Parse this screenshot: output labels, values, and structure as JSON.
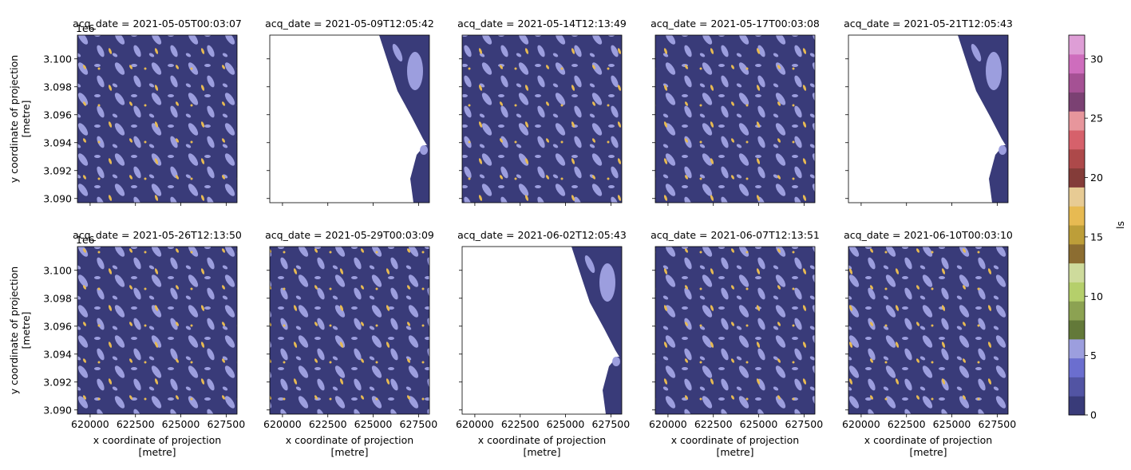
{
  "chart_data": {
    "type": "heatmap",
    "colormap": {
      "name": "tab20b",
      "label": "ls",
      "range": [
        0,
        32
      ],
      "ticks": [
        0,
        5,
        10,
        15,
        20,
        25,
        30
      ],
      "colors": [
        "#393b79",
        "#5254a3",
        "#6b6ecf",
        "#9c9ede",
        "#637939",
        "#8ca252",
        "#b5cf6b",
        "#cedb9c",
        "#8c6d31",
        "#bd9e39",
        "#e7ba52",
        "#e7cb94",
        "#843c39",
        "#ad494a",
        "#d6616b",
        "#e7969c",
        "#7b4173",
        "#a55194",
        "#ce6dbd",
        "#de9ed6"
      ]
    },
    "xlabel": "x coordinate of projection\n[metre]",
    "ylabel": "y coordinate of projection\n[metre]",
    "x_ticks": [
      "620000",
      "622500",
      "625000",
      "627500"
    ],
    "x_tick_values": [
      620000,
      622500,
      625000,
      627500
    ],
    "xlim": [
      619300,
      628100
    ],
    "y_ticks": [
      "3.090",
      "3.092",
      "3.094",
      "3.096",
      "3.098",
      "3.100"
    ],
    "y_tick_values": [
      3.09,
      3.092,
      3.094,
      3.096,
      3.098,
      3.1
    ],
    "ylim": [
      3.0897,
      3.1017
    ],
    "y_offset_label": "1e6",
    "panel_titles": [
      "acq_date = 2021-05-05T00:03:07",
      "acq_date = 2021-05-09T12:05:42",
      "acq_date = 2021-05-14T12:13:49",
      "acq_date = 2021-05-17T00:03:08",
      "acq_date = 2021-05-21T12:05:43",
      "acq_date = 2021-05-26T12:13:50",
      "acq_date = 2021-05-29T00:03:09",
      "acq_date = 2021-06-02T12:05:43",
      "acq_date = 2021-06-07T12:13:51",
      "acq_date = 2021-06-10T00:03:10"
    ],
    "panel_coverage": [
      "full",
      "east-strip",
      "full",
      "full",
      "east-strip",
      "full",
      "full",
      "east-strip",
      "full",
      "full"
    ],
    "class_values_shown": [
      0,
      5,
      15
    ],
    "class_colors_shown": {
      "0": "#393b79",
      "5": "#9c9ede",
      "15": "#e7ba52"
    }
  }
}
